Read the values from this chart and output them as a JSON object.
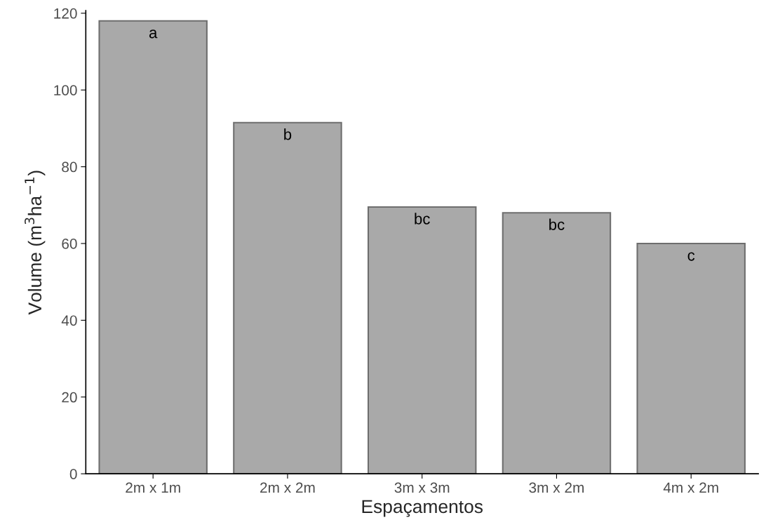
{
  "chart_data": {
    "type": "bar",
    "xlabel": "Espaçamentos",
    "ylabel": "Volume (m$^{3}$ha$^{−1}$)",
    "categories": [
      "2m x 1m",
      "2m x 2m",
      "3m x 3m",
      "3m x 2m",
      "4m x 2m"
    ],
    "values": [
      118,
      91.5,
      69.5,
      68,
      60
    ],
    "color": "#a9a9a9",
    "ylim": [
      0,
      120.7
    ],
    "yticks": [
      0,
      20,
      40,
      60,
      80,
      100,
      120
    ],
    "grid": false,
    "legend": false,
    "annotations": [
      {
        "text": "a",
        "x": "2m x 1m",
        "y": 118
      },
      {
        "text": "b",
        "x": "2m x 2m",
        "y": 91.5
      },
      {
        "text": "bc",
        "x": "3m x 3m",
        "y": 69.5
      },
      {
        "text": "bc",
        "x": "3m x 2m",
        "y": 68
      },
      {
        "text": "c",
        "x": "4m x 2m",
        "y": 60
      }
    ]
  }
}
